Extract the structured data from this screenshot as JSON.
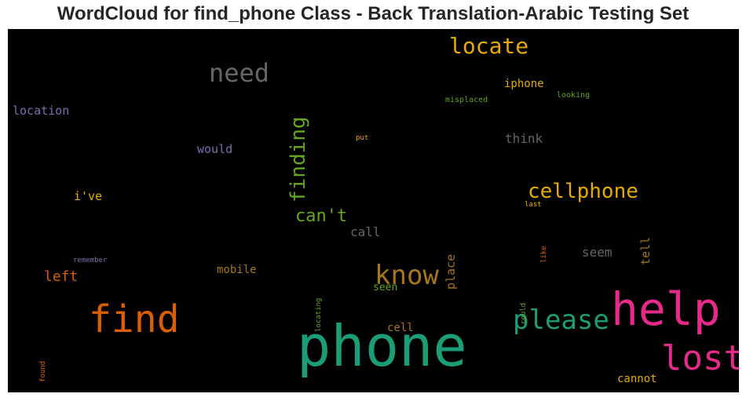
{
  "chart_data": {
    "type": "wordcloud",
    "title": "WordCloud for find_phone Class - Back Translation-Arabic Testing Set",
    "background": "#000000",
    "words": [
      {
        "text": "phone",
        "color": "#1b9e77"
      },
      {
        "text": "help",
        "color": "#e7298a"
      },
      {
        "text": "find",
        "color": "#d95f02"
      },
      {
        "text": "lost",
        "color": "#e7298a"
      },
      {
        "text": "please",
        "color": "#1b9e77"
      },
      {
        "text": "know",
        "color": "#a6761d"
      },
      {
        "text": "need",
        "color": "#666666"
      },
      {
        "text": "locate",
        "color": "#e6ab02"
      },
      {
        "text": "finding",
        "color": "#66a61e"
      },
      {
        "text": "cellphone",
        "color": "#e6ab02"
      },
      {
        "text": "can't",
        "color": "#66a61e"
      },
      {
        "text": "left",
        "color": "#d95f02"
      },
      {
        "text": "location",
        "color": "#7570b3"
      },
      {
        "text": "think",
        "color": "#666666"
      },
      {
        "text": "call",
        "color": "#666666"
      },
      {
        "text": "seem",
        "color": "#666666"
      },
      {
        "text": "would",
        "color": "#7570b3"
      },
      {
        "text": "i've",
        "color": "#e6ab02"
      },
      {
        "text": "place",
        "color": "#a6761d"
      },
      {
        "text": "tell",
        "color": "#a6761d"
      },
      {
        "text": "mobile",
        "color": "#a6761d"
      },
      {
        "text": "iphone",
        "color": "#e6ab02"
      },
      {
        "text": "cell",
        "color": "#a6761d"
      },
      {
        "text": "seen",
        "color": "#66a61e"
      },
      {
        "text": "cannot",
        "color": "#e6ab02"
      },
      {
        "text": "misplaced",
        "color": "#66a61e"
      },
      {
        "text": "looking",
        "color": "#66a61e"
      },
      {
        "text": "put",
        "color": "#e6ab02"
      },
      {
        "text": "last",
        "color": "#e6ab02"
      },
      {
        "text": "like",
        "color": "#d95f02"
      },
      {
        "text": "remember",
        "color": "#7570b3"
      },
      {
        "text": "locating",
        "color": "#66a61e"
      },
      {
        "text": "could",
        "color": "#66a61e"
      },
      {
        "text": "found",
        "color": "#d95f02"
      }
    ]
  }
}
